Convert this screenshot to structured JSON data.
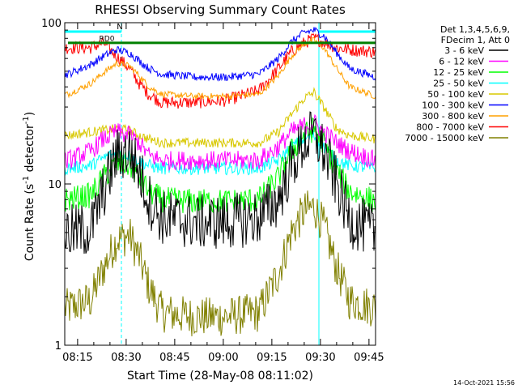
{
  "chart_data": {
    "type": "line",
    "title": "RHESSI Observing Summary Count Rates",
    "xlabel": "Start Time (28-May-08 08:11:02)",
    "ylabel_main": "Count Rate (s",
    "ylabel_sup": "-1",
    "ylabel_tail": " detector",
    "ylabel_end": ")",
    "yscale": "log",
    "ylim": [
      1,
      100
    ],
    "xlim_minutes": [
      0,
      96
    ],
    "x_ticks": [
      {
        "label": "08:15",
        "min": 3.97
      },
      {
        "label": "08:30",
        "min": 18.97
      },
      {
        "label": "08:45",
        "min": 33.97
      },
      {
        "label": "09:00",
        "min": 48.97
      },
      {
        "label": "09:15",
        "min": 63.97
      },
      {
        "label": "09:30",
        "min": 78.97
      },
      {
        "label": "09:45",
        "min": 93.97
      }
    ],
    "y_ticks": [
      {
        "label": "1",
        "value": 1
      },
      {
        "label": "10",
        "value": 10
      },
      {
        "label": "100",
        "value": 100
      }
    ],
    "legend_header": [
      "Det 1,3,4,5,6,9,",
      "FDecim 1, Att 0"
    ],
    "series": [
      {
        "name": "3 - 6 keV",
        "color": "#000000",
        "noise": 0.35,
        "points": [
          [
            1,
            5.0
          ],
          [
            8,
            5.2
          ],
          [
            12,
            9
          ],
          [
            16,
            15
          ],
          [
            20,
            16
          ],
          [
            23,
            12
          ],
          [
            26,
            8
          ],
          [
            30,
            6.2
          ],
          [
            40,
            5.8
          ],
          [
            50,
            5.8
          ],
          [
            60,
            6.2
          ],
          [
            66,
            8
          ],
          [
            70,
            13
          ],
          [
            74,
            18
          ],
          [
            77,
            20
          ],
          [
            80,
            16
          ],
          [
            84,
            10
          ],
          [
            88,
            6
          ],
          [
            96,
            5
          ]
        ]
      },
      {
        "name": "6 - 12 keV",
        "color": "#ff00ff",
        "noise": 0.12,
        "points": [
          [
            1,
            14
          ],
          [
            8,
            16
          ],
          [
            12,
            19
          ],
          [
            16,
            21
          ],
          [
            20,
            20
          ],
          [
            23,
            18
          ],
          [
            26,
            15
          ],
          [
            30,
            14
          ],
          [
            40,
            14
          ],
          [
            50,
            14
          ],
          [
            60,
            14
          ],
          [
            66,
            17
          ],
          [
            70,
            21
          ],
          [
            74,
            23
          ],
          [
            77,
            24
          ],
          [
            80,
            21
          ],
          [
            84,
            18
          ],
          [
            88,
            16
          ],
          [
            96,
            14
          ]
        ]
      },
      {
        "name": "12 - 25 keV",
        "color": "#00ff00",
        "noise": 0.16,
        "points": [
          [
            1,
            8
          ],
          [
            8,
            8.5
          ],
          [
            12,
            11
          ],
          [
            16,
            13.5
          ],
          [
            20,
            13
          ],
          [
            23,
            11
          ],
          [
            26,
            9
          ],
          [
            30,
            8
          ],
          [
            40,
            7.8
          ],
          [
            50,
            7.8
          ],
          [
            60,
            8
          ],
          [
            66,
            11
          ],
          [
            70,
            16
          ],
          [
            74,
            20
          ],
          [
            77,
            22
          ],
          [
            80,
            18
          ],
          [
            84,
            12
          ],
          [
            88,
            9
          ],
          [
            96,
            7.8
          ]
        ]
      },
      {
        "name": "25 - 50 keV",
        "color": "#00ffff",
        "noise": 0.08,
        "points": [
          [
            1,
            12.5
          ],
          [
            8,
            13
          ],
          [
            12,
            14.5
          ],
          [
            16,
            15.5
          ],
          [
            20,
            15
          ],
          [
            23,
            14
          ],
          [
            26,
            13
          ],
          [
            30,
            12.5
          ],
          [
            40,
            12.5
          ],
          [
            50,
            12.5
          ],
          [
            60,
            12.5
          ],
          [
            66,
            14
          ],
          [
            70,
            17
          ],
          [
            74,
            19
          ],
          [
            77,
            20
          ],
          [
            80,
            17
          ],
          [
            84,
            14
          ],
          [
            88,
            13
          ],
          [
            96,
            12.5
          ]
        ]
      },
      {
        "name": "50 - 100 keV",
        "color": "#d8c800",
        "noise": 0.06,
        "points": [
          [
            1,
            20
          ],
          [
            8,
            21
          ],
          [
            12,
            21.5
          ],
          [
            16,
            22
          ],
          [
            20,
            21.5
          ],
          [
            23,
            20
          ],
          [
            26,
            19
          ],
          [
            30,
            18
          ],
          [
            40,
            18
          ],
          [
            50,
            18
          ],
          [
            60,
            18
          ],
          [
            66,
            21
          ],
          [
            70,
            27
          ],
          [
            74,
            34
          ],
          [
            77,
            37
          ],
          [
            80,
            30
          ],
          [
            84,
            22
          ],
          [
            88,
            20
          ],
          [
            96,
            19
          ]
        ]
      },
      {
        "name": "100 - 300 keV",
        "color": "#0000ff",
        "noise": 0.05,
        "points": [
          [
            1,
            48
          ],
          [
            8,
            55
          ],
          [
            12,
            62
          ],
          [
            16,
            68
          ],
          [
            20,
            65
          ],
          [
            23,
            58
          ],
          [
            26,
            52
          ],
          [
            30,
            48
          ],
          [
            40,
            46
          ],
          [
            50,
            46
          ],
          [
            60,
            48
          ],
          [
            66,
            60
          ],
          [
            70,
            76
          ],
          [
            74,
            87
          ],
          [
            77,
            90
          ],
          [
            80,
            83
          ],
          [
            84,
            65
          ],
          [
            88,
            52
          ],
          [
            96,
            46
          ]
        ]
      },
      {
        "name": "300 - 800 keV",
        "color": "#ffa000",
        "noise": 0.04,
        "points": [
          [
            1,
            36
          ],
          [
            8,
            42
          ],
          [
            12,
            49
          ],
          [
            16,
            56
          ],
          [
            20,
            54
          ],
          [
            23,
            47
          ],
          [
            26,
            40
          ],
          [
            30,
            36
          ],
          [
            40,
            35
          ],
          [
            50,
            35
          ],
          [
            60,
            36
          ],
          [
            66,
            47
          ],
          [
            70,
            62
          ],
          [
            74,
            74
          ],
          [
            77,
            78
          ],
          [
            80,
            70
          ],
          [
            84,
            52
          ],
          [
            88,
            40
          ],
          [
            96,
            35
          ]
        ]
      },
      {
        "name": "800 - 7000 keV",
        "color": "#ff0000",
        "noise": 0.08,
        "points": [
          [
            1,
            70
          ],
          [
            8,
            70
          ],
          [
            12,
            75
          ],
          [
            16,
            62
          ],
          [
            20,
            52
          ],
          [
            23,
            42
          ],
          [
            26,
            36
          ],
          [
            30,
            32
          ],
          [
            40,
            32
          ],
          [
            50,
            33
          ],
          [
            60,
            38
          ],
          [
            66,
            52
          ],
          [
            70,
            66
          ],
          [
            74,
            75
          ],
          [
            77,
            80
          ],
          [
            80,
            76
          ],
          [
            84,
            70
          ],
          [
            88,
            68
          ],
          [
            96,
            66
          ]
        ]
      },
      {
        "name": "7000 - 15000 keV",
        "color": "#808000",
        "noise": 0.25,
        "points": [
          [
            1,
            1.7
          ],
          [
            8,
            1.9
          ],
          [
            12,
            3
          ],
          [
            16,
            4.5
          ],
          [
            20,
            4.8
          ],
          [
            23,
            3.5
          ],
          [
            26,
            2.3
          ],
          [
            30,
            1.6
          ],
          [
            40,
            1.5
          ],
          [
            50,
            1.5
          ],
          [
            60,
            1.6
          ],
          [
            66,
            2.8
          ],
          [
            70,
            5
          ],
          [
            74,
            6.8
          ],
          [
            77,
            7.2
          ],
          [
            80,
            5.5
          ],
          [
            84,
            3
          ],
          [
            88,
            1.9
          ],
          [
            96,
            1.7
          ]
        ]
      }
    ],
    "markers": {
      "saa_label": "N",
      "rd_label": "RD0",
      "saa_lines": [
        0.0,
        17.5,
        78.5,
        96.0
      ],
      "solid_lines": [
        0.0,
        78.5
      ],
      "cyan_bar": [
        [
          0.0,
          17.5
        ],
        [
          78.5,
          96.0
        ]
      ]
    }
  },
  "footer": {
    "date": "14-Oct-2021 15:56"
  }
}
